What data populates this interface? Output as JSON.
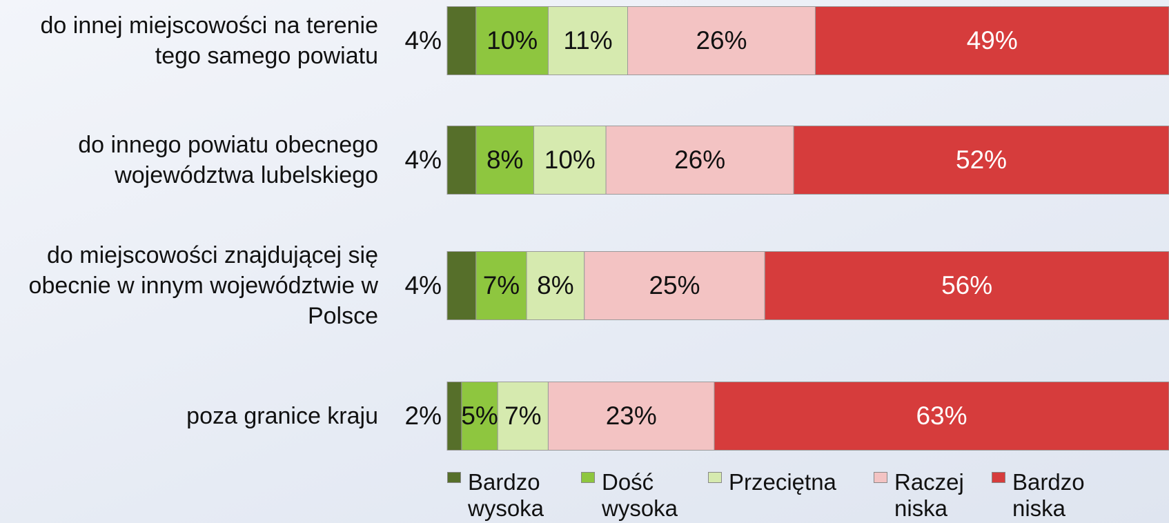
{
  "chart_data": {
    "type": "bar",
    "orientation": "horizontal",
    "stacked": true,
    "categories": [
      "do innej miejscowości na terenie tego samego powiatu",
      "do innego powiatu obecnego województwa lubelskiego",
      "do miejscowości znajdującej się obecnie w innym województwie w Polsce",
      "poza granice kraju"
    ],
    "series": [
      {
        "name": "Bardzo wysoka",
        "color": "#566f2a",
        "values": [
          4,
          4,
          4,
          2
        ],
        "value_labels": [
          "4%",
          "4%",
          "4%",
          "2%"
        ]
      },
      {
        "name": "Dość wysoka",
        "color": "#8ec63f",
        "values": [
          10,
          8,
          7,
          5
        ],
        "value_labels": [
          "10%",
          "8%",
          "7%",
          "5%"
        ]
      },
      {
        "name": "Przeciętna",
        "color": "#d6eaaf",
        "values": [
          11,
          10,
          8,
          7
        ],
        "value_labels": [
          "11%",
          "10%",
          "8%",
          "7%"
        ]
      },
      {
        "name": "Raczej niska",
        "color": "#f3c3c3",
        "values": [
          26,
          26,
          25,
          23
        ],
        "value_labels": [
          "26%",
          "26%",
          "25%",
          "23%"
        ]
      },
      {
        "name": "Bardzo niska",
        "color": "#d63c3c",
        "values": [
          49,
          52,
          56,
          63
        ],
        "value_labels": [
          "49%",
          "52%",
          "56%",
          "63%"
        ]
      }
    ],
    "xlim": [
      0,
      100
    ]
  }
}
